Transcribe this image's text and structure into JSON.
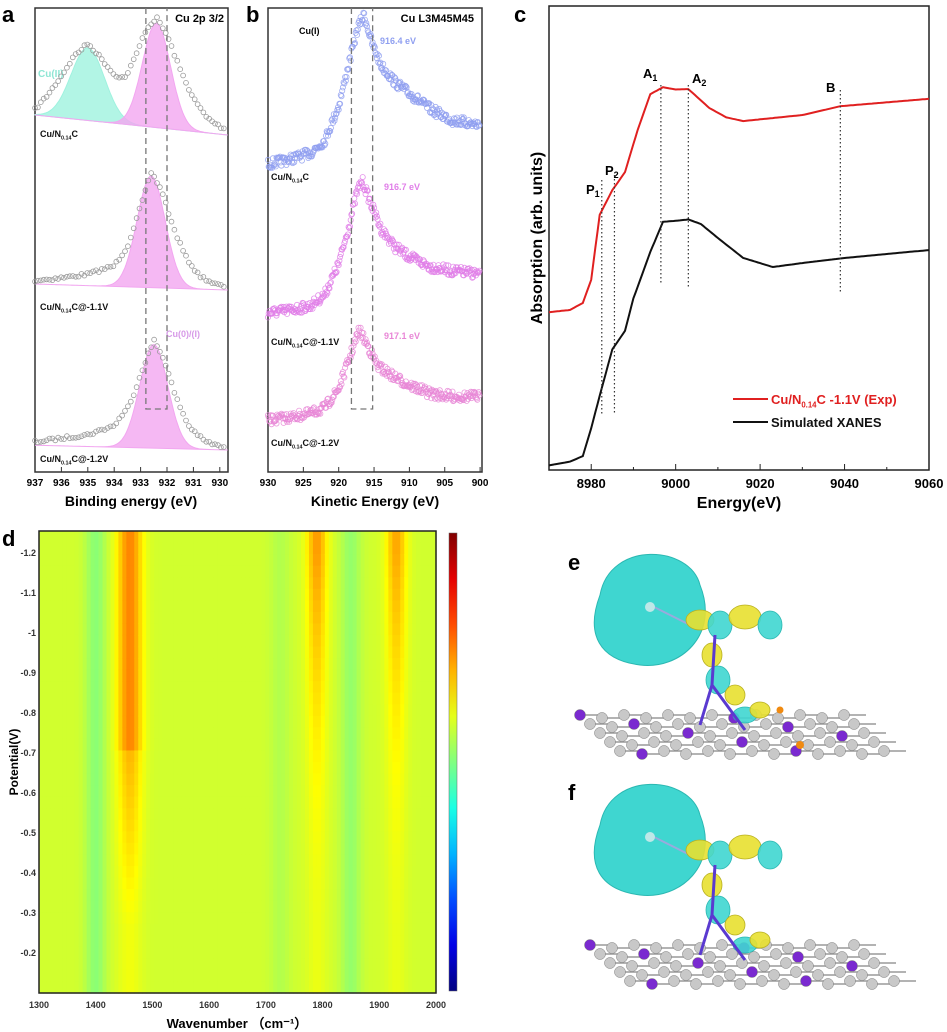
{
  "chart_data": [
    {
      "panel": "a",
      "type": "area",
      "title": "Cu 2p 3/2",
      "xlabel": "Binding energy (eV)",
      "xlim": [
        937,
        929.7
      ],
      "xticks": [
        "937",
        "936",
        "935",
        "934",
        "933",
        "932",
        "931",
        "930"
      ],
      "annotations": [
        "Cu(II)",
        "Cu(0)/(I)"
      ],
      "dashed_box_x": [
        932.8,
        932.0
      ],
      "colors": {
        "cu2": "#9ff2df",
        "cu01": "#f2a6f0",
        "points": "#9a9a9a"
      },
      "series": [
        {
          "name": "Cu/N0.14C",
          "points": [
            [
              937,
              0.05
            ],
            [
              936.5,
              0.2
            ],
            [
              936,
              0.38
            ],
            [
              935.5,
              0.58
            ],
            [
              935,
              0.7
            ],
            [
              934.5,
              0.58
            ],
            [
              934,
              0.44
            ],
            [
              933.6,
              0.42
            ],
            [
              933.2,
              0.62
            ],
            [
              932.8,
              0.88
            ],
            [
              932.4,
              1.0
            ],
            [
              932,
              0.85
            ],
            [
              931.5,
              0.55
            ],
            [
              931,
              0.3
            ],
            [
              930.5,
              0.14
            ],
            [
              930,
              0.07
            ],
            [
              929.7,
              0.04
            ]
          ],
          "components": [
            {
              "label": "Cu(II)",
              "center": 935.0,
              "height": 0.66
            },
            {
              "label": "Cu(0)/(I)",
              "center": 932.4,
              "height": 0.95
            }
          ]
        },
        {
          "name": "Cu/N0.14C@-1.1V",
          "points": [
            [
              937,
              0.03
            ],
            [
              936,
              0.06
            ],
            [
              935,
              0.1
            ],
            [
              934,
              0.18
            ],
            [
              933.5,
              0.35
            ],
            [
              933,
              0.7
            ],
            [
              932.6,
              1.0
            ],
            [
              932.2,
              0.85
            ],
            [
              931.8,
              0.55
            ],
            [
              931.3,
              0.28
            ],
            [
              930.8,
              0.12
            ],
            [
              930.2,
              0.05
            ],
            [
              929.7,
              0.02
            ]
          ],
          "components": [
            {
              "label": "Cu(0)/(I)",
              "center": 932.6,
              "height": 0.97
            }
          ]
        },
        {
          "name": "Cu/N0.14C@-1.2V",
          "points": [
            [
              937,
              0.03
            ],
            [
              936,
              0.07
            ],
            [
              935,
              0.11
            ],
            [
              934,
              0.2
            ],
            [
              933.4,
              0.4
            ],
            [
              932.9,
              0.75
            ],
            [
              932.5,
              1.0
            ],
            [
              932.1,
              0.82
            ],
            [
              931.7,
              0.5
            ],
            [
              931.2,
              0.22
            ],
            [
              930.6,
              0.08
            ],
            [
              930,
              0.03
            ],
            [
              929.7,
              0.02
            ]
          ],
          "components": [
            {
              "label": "Cu(0)/(I)",
              "center": 932.5,
              "height": 0.96
            }
          ]
        }
      ]
    },
    {
      "panel": "b",
      "type": "scatter",
      "title": "Cu L3M45M45",
      "xlabel": "Kinetic Energy (eV)",
      "xlim": [
        930,
        900
      ],
      "xticks": [
        "930",
        "925",
        "920",
        "915",
        "910",
        "905",
        "900"
      ],
      "annotations": [
        "Cu(I)"
      ],
      "dashed_box_x": [
        918.2,
        915.2
      ],
      "series": [
        {
          "name": "Cu/N0.14C",
          "peak_label": "916.4 eV",
          "color": "#8f9ff0",
          "points": [
            [
              930,
              0.05
            ],
            [
              927,
              0.08
            ],
            [
              924,
              0.12
            ],
            [
              922,
              0.2
            ],
            [
              920,
              0.42
            ],
            [
              918.5,
              0.7
            ],
            [
              917.3,
              0.92
            ],
            [
              916.4,
              1.0
            ],
            [
              915.3,
              0.82
            ],
            [
              914,
              0.68
            ],
            [
              912,
              0.57
            ],
            [
              910,
              0.5
            ],
            [
              907,
              0.4
            ],
            [
              904,
              0.33
            ],
            [
              900,
              0.3
            ]
          ]
        },
        {
          "name": "Cu/N0.14C@-1.1V",
          "peak_label": "916.7 eV",
          "color": "#e07ee8",
          "points": [
            [
              930,
              0.05
            ],
            [
              927,
              0.07
            ],
            [
              924,
              0.1
            ],
            [
              922,
              0.18
            ],
            [
              920,
              0.4
            ],
            [
              918.5,
              0.68
            ],
            [
              917.5,
              0.9
            ],
            [
              916.7,
              1.0
            ],
            [
              915.6,
              0.85
            ],
            [
              914,
              0.65
            ],
            [
              912,
              0.52
            ],
            [
              910,
              0.45
            ],
            [
              907,
              0.38
            ],
            [
              904,
              0.35
            ],
            [
              900,
              0.33
            ]
          ]
        },
        {
          "name": "Cu/N0.14C@-1.2V",
          "peak_label": "917.1 eV",
          "color": "#e886d6",
          "points": [
            [
              930,
              0.05
            ],
            [
              927,
              0.08
            ],
            [
              924,
              0.12
            ],
            [
              922,
              0.18
            ],
            [
              920,
              0.38
            ],
            [
              918.5,
              0.7
            ],
            [
              917.1,
              1.0
            ],
            [
              916,
              0.85
            ],
            [
              914.5,
              0.62
            ],
            [
              912,
              0.5
            ],
            [
              910,
              0.42
            ],
            [
              907,
              0.33
            ],
            [
              904,
              0.3
            ],
            [
              900,
              0.3
            ]
          ]
        }
      ]
    },
    {
      "panel": "c",
      "type": "line",
      "xlabel": "Energy(eV)",
      "ylabel": "Absorption (arb. units)",
      "xlim": [
        8970,
        9060
      ],
      "xticks": [
        "8980",
        "9000",
        "9020",
        "9040",
        "9060"
      ],
      "legend_position": "bottom-right",
      "markers": [
        {
          "label": "P",
          "sub": "1",
          "x": 8982.5
        },
        {
          "label": "P",
          "sub": "2",
          "x": 8985.5
        },
        {
          "label": "A",
          "sub": "1",
          "x": 8996.5
        },
        {
          "label": "A",
          "sub": "2",
          "x": 9003
        },
        {
          "label": "B",
          "sub": "",
          "x": 9039
        }
      ],
      "series": [
        {
          "name": "Cu/N0.14C -1.1V (Exp)",
          "name_main": "Cu/N",
          "name_sub": "0.14",
          "name_rest": "C -1.1V (Exp)",
          "color": "#e02020",
          "points": [
            [
              8970,
              0.34
            ],
            [
              8975,
              0.345
            ],
            [
              8978,
              0.36
            ],
            [
              8980,
              0.41
            ],
            [
              8982,
              0.55
            ],
            [
              8985,
              0.603
            ],
            [
              8988,
              0.642
            ],
            [
              8991,
              0.733
            ],
            [
              8994,
              0.81
            ],
            [
              8997,
              0.825
            ],
            [
              9000,
              0.82
            ],
            [
              9003,
              0.821
            ],
            [
              9008,
              0.78
            ],
            [
              9012,
              0.76
            ],
            [
              9016,
              0.752
            ],
            [
              9030,
              0.765
            ],
            [
              9039,
              0.784
            ],
            [
              9060,
              0.8
            ]
          ]
        },
        {
          "name": "Simulated XANES",
          "color": "#111111",
          "points": [
            [
              8970,
              0.01
            ],
            [
              8975,
              0.018
            ],
            [
              8978,
              0.03
            ],
            [
              8980,
              0.09
            ],
            [
              8982,
              0.16
            ],
            [
              8985,
              0.26
            ],
            [
              8988,
              0.3
            ],
            [
              8990,
              0.37
            ],
            [
              8994,
              0.47
            ],
            [
              8997,
              0.535
            ],
            [
              9000,
              0.537
            ],
            [
              9003,
              0.54
            ],
            [
              9006,
              0.53
            ],
            [
              9010,
              0.5
            ],
            [
              9016,
              0.457
            ],
            [
              9023,
              0.4375
            ],
            [
              9030,
              0.446
            ],
            [
              9040,
              0.457
            ],
            [
              9060,
              0.474
            ]
          ]
        }
      ]
    },
    {
      "panel": "d",
      "type": "heatmap",
      "xlabel": "Wavenumber （cm⁻¹）",
      "ylabel": "Potential(V)",
      "xlim": [
        1300,
        2000
      ],
      "ylim": [
        -0.1,
        -1.25
      ],
      "xticks": [
        "1300",
        "1400",
        "1500",
        "1600",
        "1700",
        "1800",
        "1900",
        "2000"
      ],
      "yticks": [
        "-1.2",
        "-1.1",
        "-1",
        "-0.9",
        "-0.8",
        "-0.7",
        "-0.6",
        "-0.5",
        "-0.4",
        "-0.3",
        "-0.2"
      ],
      "colormap": "jet",
      "features": [
        {
          "wavenumber": 1460,
          "type": "positive",
          "strength": 0.75
        },
        {
          "wavenumber": 1790,
          "type": "positive",
          "strength": 0.55
        },
        {
          "wavenumber": 1930,
          "type": "positive",
          "strength": 0.5
        },
        {
          "wavenumber": 1400,
          "type": "negative",
          "strength": 0.35
        },
        {
          "wavenumber": 1850,
          "type": "negative",
          "strength": 0.3
        },
        {
          "wavenumber": 1725,
          "type": "negative",
          "strength": 0.15
        }
      ]
    }
  ],
  "panel_labels": [
    "a",
    "b",
    "c",
    "d",
    "e",
    "f"
  ],
  "structures": {
    "colors": {
      "isosurface_cyan": "#3fd6d0",
      "isosurface_yellow": "#e8e030",
      "carbon": "#c8c8c8",
      "nitrogen": "#7a2ad0",
      "copper": "#f08a10"
    }
  }
}
